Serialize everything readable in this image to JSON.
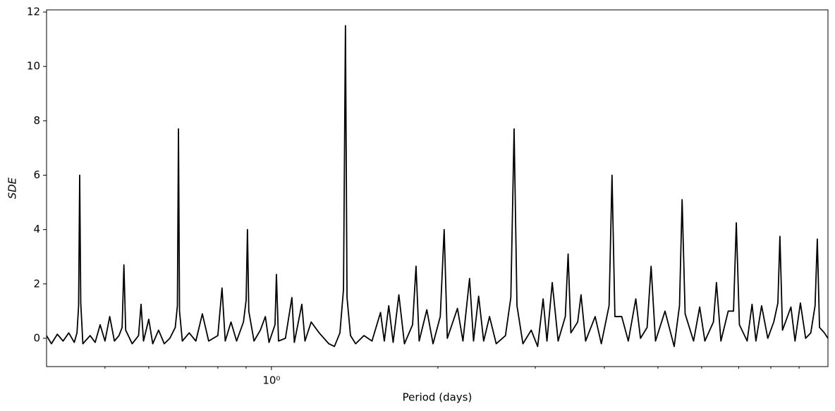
{
  "chart_data": {
    "type": "line",
    "xlabel": "Period (days)",
    "ylabel": "SDE",
    "xscale": "log",
    "xlim": [
      0.392,
      10.15
    ],
    "ylim": [
      -1.04,
      12.08
    ],
    "xticks": [
      {
        "value": 1,
        "label": "10⁰"
      }
    ],
    "xminorticks": [
      0.5,
      0.6,
      0.7,
      0.8,
      0.9,
      2,
      3,
      4,
      5,
      6,
      7,
      8,
      9
    ],
    "yticks": [
      0,
      2,
      4,
      6,
      8,
      10,
      12
    ],
    "grid": false,
    "series": [
      {
        "color": "#000000",
        "x": [
          0.392,
          0.4,
          0.41,
          0.42,
          0.43,
          0.44,
          0.445,
          0.448,
          0.45,
          0.452,
          0.456,
          0.47,
          0.48,
          0.49,
          0.5,
          0.51,
          0.52,
          0.53,
          0.537,
          0.541,
          0.545,
          0.56,
          0.575,
          0.581,
          0.587,
          0.6,
          0.61,
          0.625,
          0.64,
          0.655,
          0.67,
          0.676,
          0.679,
          0.682,
          0.69,
          0.71,
          0.73,
          0.75,
          0.77,
          0.8,
          0.814,
          0.825,
          0.845,
          0.865,
          0.89,
          0.9,
          0.905,
          0.91,
          0.93,
          0.955,
          0.975,
          0.99,
          1.015,
          1.021,
          1.03,
          1.06,
          1.089,
          1.1,
          1.135,
          1.15,
          1.18,
          1.22,
          1.27,
          1.3,
          1.33,
          1.35,
          1.361,
          1.37,
          1.39,
          1.42,
          1.47,
          1.52,
          1.575,
          1.6,
          1.63,
          1.66,
          1.7,
          1.74,
          1.8,
          1.826,
          1.85,
          1.91,
          1.96,
          2.02,
          2.053,
          2.08,
          2.17,
          2.22,
          2.282,
          2.32,
          2.37,
          2.42,
          2.48,
          2.55,
          2.65,
          2.71,
          2.747,
          2.78,
          2.85,
          2.95,
          3.03,
          3.1,
          3.15,
          3.22,
          3.3,
          3.4,
          3.44,
          3.48,
          3.58,
          3.63,
          3.7,
          3.85,
          3.95,
          4.08,
          4.13,
          4.18,
          4.3,
          4.42,
          4.56,
          4.65,
          4.78,
          4.86,
          4.95,
          5.15,
          5.35,
          5.47,
          5.53,
          5.6,
          5.8,
          5.95,
          6.08,
          6.3,
          6.38,
          6.5,
          6.7,
          6.85,
          6.93,
          7.02,
          7.25,
          7.4,
          7.52,
          7.7,
          7.9,
          8.1,
          8.24,
          8.31,
          8.4,
          8.7,
          8.85,
          9.05,
          9.25,
          9.45,
          9.62,
          9.71,
          9.8,
          10.0,
          10.15
        ],
        "values": [
          0.1,
          -0.2,
          0.15,
          -0.1,
          0.2,
          -0.15,
          0.2,
          1.2,
          6.0,
          1.3,
          -0.2,
          0.1,
          -0.15,
          0.5,
          -0.1,
          0.8,
          -0.1,
          0.1,
          0.4,
          2.7,
          0.3,
          -0.2,
          0.1,
          1.25,
          -0.1,
          0.7,
          -0.2,
          0.3,
          -0.2,
          0.0,
          0.4,
          1.2,
          7.7,
          1.0,
          -0.1,
          0.2,
          -0.1,
          0.9,
          -0.1,
          0.1,
          1.85,
          -0.1,
          0.6,
          -0.1,
          0.6,
          1.4,
          4.0,
          1.0,
          -0.1,
          0.3,
          0.8,
          -0.15,
          0.5,
          2.35,
          -0.1,
          0.0,
          1.5,
          -0.15,
          1.25,
          -0.1,
          0.6,
          0.2,
          -0.2,
          -0.3,
          0.2,
          1.8,
          11.5,
          1.5,
          0.1,
          -0.2,
          0.1,
          -0.1,
          0.95,
          -0.1,
          1.2,
          -0.15,
          1.6,
          -0.2,
          0.5,
          2.65,
          -0.1,
          1.05,
          -0.2,
          0.8,
          4.0,
          0.0,
          1.1,
          -0.1,
          2.2,
          -0.1,
          1.55,
          -0.1,
          0.8,
          -0.2,
          0.1,
          1.5,
          7.7,
          1.2,
          -0.2,
          0.3,
          -0.3,
          1.45,
          -0.1,
          2.05,
          -0.1,
          0.8,
          3.1,
          0.2,
          0.6,
          1.6,
          -0.1,
          0.8,
          -0.2,
          1.2,
          6.0,
          0.8,
          0.8,
          -0.1,
          1.45,
          0.0,
          0.4,
          2.65,
          -0.1,
          1.0,
          -0.3,
          1.2,
          5.1,
          0.9,
          -0.1,
          1.15,
          -0.1,
          0.6,
          2.05,
          -0.1,
          1.0,
          1.0,
          4.25,
          0.5,
          -0.1,
          1.25,
          -0.1,
          1.2,
          0.0,
          0.6,
          1.3,
          3.75,
          0.3,
          1.15,
          -0.1,
          1.3,
          0.0,
          0.2,
          1.2,
          3.65,
          0.4,
          0.2,
          0.0
        ]
      }
    ]
  }
}
